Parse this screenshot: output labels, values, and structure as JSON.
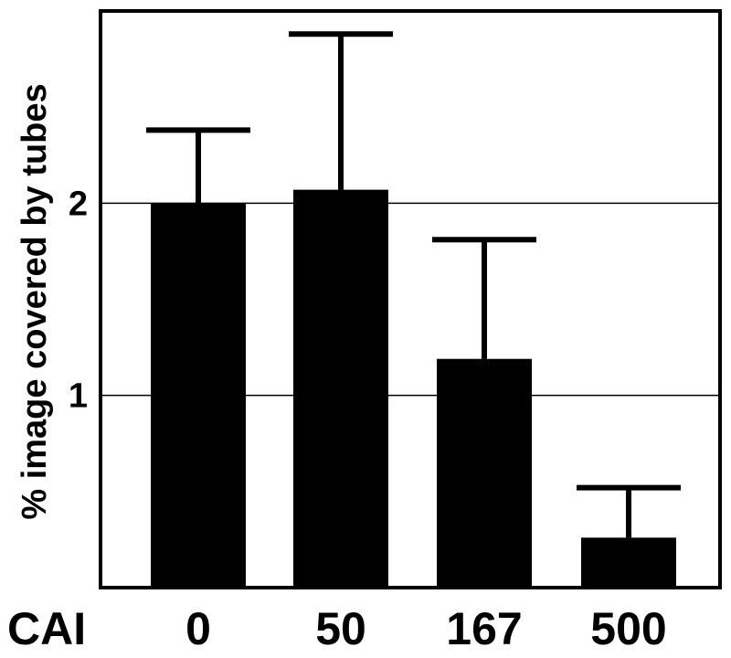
{
  "chart_data": {
    "type": "bar",
    "title": "",
    "ylabel": "% image covered by tubes",
    "xlabel": "CAI",
    "categories": [
      "0",
      "50",
      "167",
      "500"
    ],
    "values": [
      2.0,
      2.07,
      1.19,
      0.26
    ],
    "error_upper": [
      2.38,
      2.88,
      1.81,
      0.52
    ],
    "ylim": [
      0,
      3.0
    ],
    "yticks": [
      1,
      2
    ],
    "yticklabels": [
      "1",
      "2"
    ],
    "grid": "horizontal lines at y=1 and y=2",
    "legend": "none",
    "colors": {
      "bar": "#000000",
      "error_bar": "#000000",
      "gridline": "#000000",
      "frame": "#000000",
      "background": "#ffffff"
    }
  }
}
